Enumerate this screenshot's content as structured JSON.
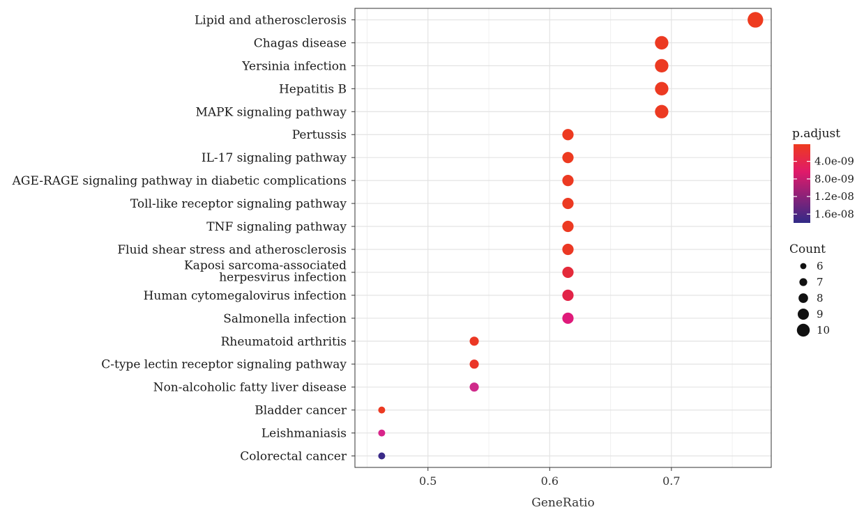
{
  "chart_data": {
    "type": "scatter",
    "title": "",
    "xlabel": "GeneRatio",
    "ylabel": "",
    "xlim": [
      0.44,
      0.782
    ],
    "xticks": [
      0.5,
      0.6,
      0.7
    ],
    "xtick_labels": [
      "0.5",
      "0.6",
      "0.7"
    ],
    "grid": true,
    "legend_position": "right",
    "color_key": "p.adjust",
    "size_key": "Count",
    "color_scale": {
      "low_color": "#ee3b1f",
      "mid_color": "#e01a6a",
      "high_color": "#312a87",
      "min": 1e-10,
      "max": 1.8e-08,
      "ticks": [
        4e-09,
        8e-09,
        1.2e-08,
        1.6e-08
      ],
      "tick_labels": [
        "4.0e-09",
        "8.0e-09",
        "1.2e-08",
        "1.6e-08"
      ]
    },
    "size_legend": {
      "values": [
        6,
        7,
        8,
        9,
        10
      ],
      "labels": [
        "6",
        "7",
        "8",
        "9",
        "10"
      ]
    },
    "points": [
      {
        "term": "Lipid and atherosclerosis",
        "gene_ratio": 0.769,
        "count": 10,
        "p_adjust": 5e-10,
        "color": "#ee3b1f"
      },
      {
        "term": "Chagas disease",
        "gene_ratio": 0.692,
        "count": 9,
        "p_adjust": 8e-10,
        "color": "#ec3a22"
      },
      {
        "term": "Yersinia infection",
        "gene_ratio": 0.692,
        "count": 9,
        "p_adjust": 8e-10,
        "color": "#ec3a22"
      },
      {
        "term": "Hepatitis B",
        "gene_ratio": 0.692,
        "count": 9,
        "p_adjust": 9e-10,
        "color": "#ec3a22"
      },
      {
        "term": "MAPK signaling pathway",
        "gene_ratio": 0.692,
        "count": 9,
        "p_adjust": 1e-09,
        "color": "#ec3a22"
      },
      {
        "term": "Pertussis",
        "gene_ratio": 0.615,
        "count": 8,
        "p_adjust": 6e-10,
        "color": "#ed3a20"
      },
      {
        "term": "IL-17 signaling pathway",
        "gene_ratio": 0.615,
        "count": 8,
        "p_adjust": 7e-10,
        "color": "#ed3a20"
      },
      {
        "term": "AGE-RAGE signaling pathway in diabetic complications",
        "gene_ratio": 0.615,
        "count": 8,
        "p_adjust": 8e-10,
        "color": "#ec3a22"
      },
      {
        "term": "Toll-like receptor signaling pathway",
        "gene_ratio": 0.615,
        "count": 8,
        "p_adjust": 1e-09,
        "color": "#ec3a22"
      },
      {
        "term": "TNF signaling pathway",
        "gene_ratio": 0.615,
        "count": 8,
        "p_adjust": 1e-09,
        "color": "#ec3a22"
      },
      {
        "term": "Fluid shear stress and atherosclerosis",
        "gene_ratio": 0.615,
        "count": 8,
        "p_adjust": 1.2e-09,
        "color": "#eb3824"
      },
      {
        "term": "Kaposi sarcoma-associated herpesvirus infection",
        "gene_ratio": 0.615,
        "count": 8,
        "p_adjust": 2.5e-09,
        "color": "#e42a3a"
      },
      {
        "term": "Human cytomegalovirus infection",
        "gene_ratio": 0.615,
        "count": 8,
        "p_adjust": 3.5e-09,
        "color": "#e22448"
      },
      {
        "term": "Salmonella infection",
        "gene_ratio": 0.615,
        "count": 8,
        "p_adjust": 7e-09,
        "color": "#df1a7a"
      },
      {
        "term": "Rheumatoid arthritis",
        "gene_ratio": 0.538,
        "count": 7,
        "p_adjust": 1.2e-09,
        "color": "#eb3824"
      },
      {
        "term": "C-type lectin receptor signaling pathway",
        "gene_ratio": 0.538,
        "count": 7,
        "p_adjust": 1.5e-09,
        "color": "#ea3528"
      },
      {
        "term": "Non-alcoholic fatty liver disease",
        "gene_ratio": 0.538,
        "count": 7,
        "p_adjust": 9e-09,
        "color": "#cf2a8a"
      },
      {
        "term": "Bladder cancer",
        "gene_ratio": 0.462,
        "count": 6,
        "p_adjust": 1e-09,
        "color": "#ec3a22"
      },
      {
        "term": "Leishmaniasis",
        "gene_ratio": 0.462,
        "count": 6,
        "p_adjust": 8.5e-09,
        "color": "#d8258a"
      },
      {
        "term": "Colorectal cancer",
        "gene_ratio": 0.462,
        "count": 6,
        "p_adjust": 1.7e-08,
        "color": "#3a2a88"
      }
    ]
  }
}
